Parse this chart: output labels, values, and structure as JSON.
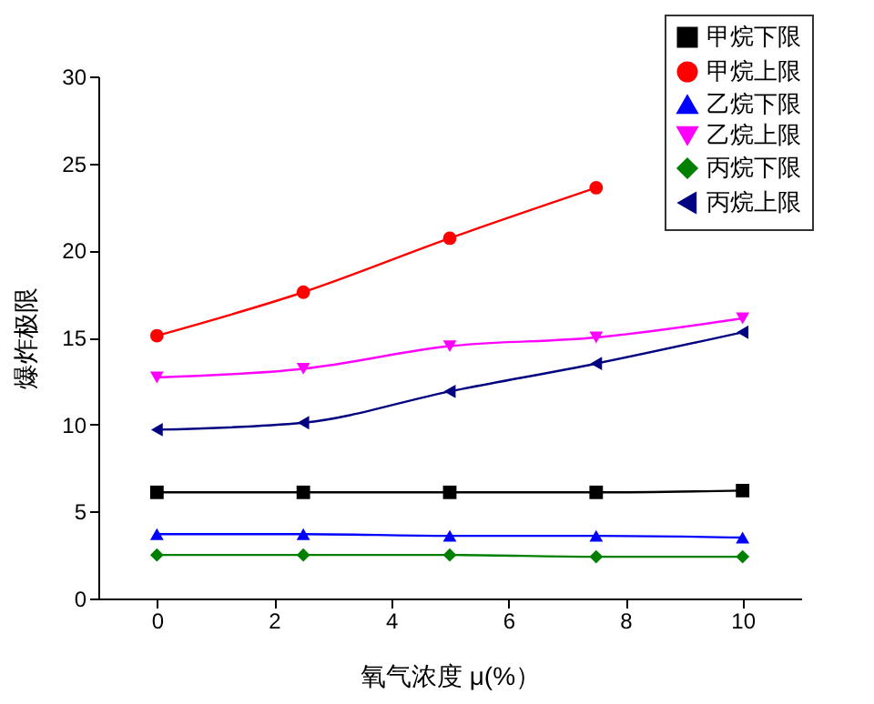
{
  "chart_data": {
    "type": "line",
    "xlabel": "氧气浓度 μ(%）",
    "ylabel": "爆炸极限",
    "x": [
      0,
      2.5,
      5,
      7.5,
      10
    ],
    "series": [
      {
        "name": "甲烷下限",
        "color": "#000000",
        "marker": "square",
        "values": [
          6.1,
          6.1,
          6.1,
          6.1,
          6.2
        ]
      },
      {
        "name": "甲烷上限",
        "color": "#ff0000",
        "marker": "circle",
        "values": [
          15.1,
          17.6,
          20.7,
          23.6,
          null
        ]
      },
      {
        "name": "乙烷下限",
        "color": "#0000ff",
        "marker": "triangle",
        "values": [
          3.7,
          3.7,
          3.6,
          3.6,
          3.5
        ]
      },
      {
        "name": "乙烷上限",
        "color": "#ff00ff",
        "marker": "triangle-down",
        "values": [
          12.7,
          13.2,
          14.5,
          15.0,
          16.1
        ]
      },
      {
        "name": "丙烷下限",
        "color": "#008000",
        "marker": "diamond",
        "values": [
          2.5,
          2.5,
          2.5,
          2.4,
          2.4
        ]
      },
      {
        "name": "丙烷上限",
        "color": "#000080",
        "marker": "triangle-left",
        "values": [
          9.7,
          10.1,
          11.9,
          13.5,
          15.3
        ]
      }
    ],
    "xlim": [
      -1,
      11
    ],
    "xticks": [
      0,
      2,
      4,
      6,
      8,
      10
    ],
    "ylim": [
      0,
      30
    ],
    "yticks": [
      0,
      5,
      10,
      15,
      20,
      25,
      30
    ],
    "grid": false,
    "legend": "top right"
  }
}
